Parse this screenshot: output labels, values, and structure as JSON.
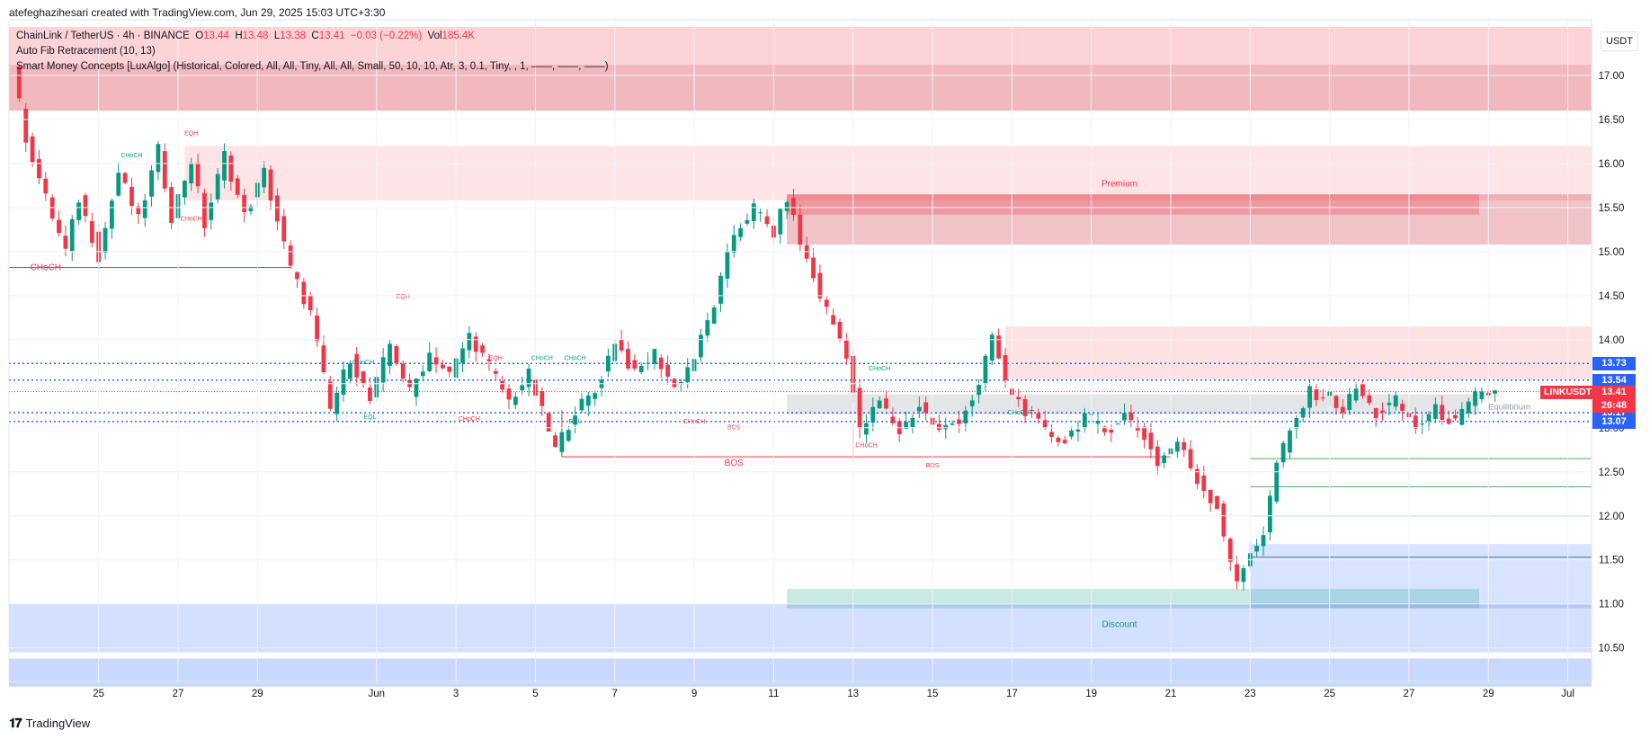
{
  "header": {
    "credit": "atefeghazihesari created with TradingView.com, Jun 29, 2025 15:03 UTC+3:30"
  },
  "legend": {
    "symbol": "ChainLink / TetherUS · 4h · BINANCE",
    "o_label": "O",
    "o": "13.44",
    "h_label": "H",
    "h": "13.48",
    "l_label": "L",
    "l": "13.38",
    "c_label": "C",
    "c": "13.41",
    "change": "−0.03 (−0.22%)",
    "vol_label": "Vol",
    "vol": "185.4K",
    "indicator1": "Auto Fib Retracement (10, 13)",
    "indicator2": "Smart Money Concepts [LuxAlgo] (Historical, Colored, All, All, Tiny, All, All, Small, 50, 10, 10, Atr, 3, 0.1, Tiny, , 1, ——, ——, ——)"
  },
  "currency": "USDT",
  "footer": {
    "brand": "TradingView"
  },
  "price_tags": {
    "symbol": "LINKUSDT",
    "last": "13.41",
    "countdown": "26:48",
    "levels": [
      {
        "label": "13.73",
        "value": 13.73
      },
      {
        "label": "13.54",
        "value": 13.54
      },
      {
        "label": "13.17",
        "value": 13.17
      },
      {
        "label": "13.07",
        "value": 13.07
      }
    ]
  },
  "colors": {
    "up": "#089981",
    "down": "#f23645",
    "blue_tag": "#2962ff"
  },
  "chart_data": {
    "type": "candlestick",
    "y_ticks": [
      "10.50",
      "11.00",
      "11.50",
      "12.00",
      "12.50",
      "13.00",
      "13.50",
      "14.00",
      "14.50",
      "15.00",
      "15.50",
      "16.00",
      "16.50",
      "17.00"
    ],
    "ylim": [
      10.15,
      17.55
    ],
    "x_ticks": [
      {
        "label": "25",
        "bar": 13
      },
      {
        "label": "27",
        "bar": 25
      },
      {
        "label": "29",
        "bar": 37
      },
      {
        "label": "Jun",
        "bar": 55
      },
      {
        "label": "3",
        "bar": 67
      },
      {
        "label": "5",
        "bar": 79
      },
      {
        "label": "7",
        "bar": 91
      },
      {
        "label": "9",
        "bar": 103
      },
      {
        "label": "11",
        "bar": 115
      },
      {
        "label": "13",
        "bar": 127
      },
      {
        "label": "15",
        "bar": 139
      },
      {
        "label": "17",
        "bar": 151
      },
      {
        "label": "19",
        "bar": 163
      },
      {
        "label": "21",
        "bar": 175
      },
      {
        "label": "23",
        "bar": 187
      },
      {
        "label": "25",
        "bar": 199
      },
      {
        "label": "27",
        "bar": 211
      },
      {
        "label": "29",
        "bar": 223
      },
      {
        "label": "Jul",
        "bar": 235
      }
    ],
    "pivots": [
      [
        0,
        17.05
      ],
      [
        2,
        16.3
      ],
      [
        5,
        15.6
      ],
      [
        8,
        15.0
      ],
      [
        10,
        15.6
      ],
      [
        13,
        14.95
      ],
      [
        16,
        15.9
      ],
      [
        19,
        15.35
      ],
      [
        22,
        16.15
      ],
      [
        24,
        15.4
      ],
      [
        27,
        16.05
      ],
      [
        29,
        15.3
      ],
      [
        32,
        16.1
      ],
      [
        35,
        15.4
      ],
      [
        38,
        15.9
      ],
      [
        42,
        14.8
      ],
      [
        45,
        14.3
      ],
      [
        48,
        13.2
      ],
      [
        51,
        13.8
      ],
      [
        54,
        13.3
      ],
      [
        57,
        13.95
      ],
      [
        60,
        13.4
      ],
      [
        63,
        13.85
      ],
      [
        66,
        13.6
      ],
      [
        69,
        14.05
      ],
      [
        72,
        13.7
      ],
      [
        75,
        13.3
      ],
      [
        78,
        13.6
      ],
      [
        82,
        12.75
      ],
      [
        85,
        13.2
      ],
      [
        88,
        13.4
      ],
      [
        91,
        14.0
      ],
      [
        94,
        13.6
      ],
      [
        97,
        13.85
      ],
      [
        100,
        13.45
      ],
      [
        103,
        13.8
      ],
      [
        106,
        14.4
      ],
      [
        109,
        15.2
      ],
      [
        112,
        15.5
      ],
      [
        115,
        15.2
      ],
      [
        117,
        15.62
      ],
      [
        119,
        15.1
      ],
      [
        122,
        14.5
      ],
      [
        126,
        13.85
      ],
      [
        128,
        12.95
      ],
      [
        131,
        13.3
      ],
      [
        134,
        12.95
      ],
      [
        137,
        13.25
      ],
      [
        140,
        12.95
      ],
      [
        143,
        13.1
      ],
      [
        146,
        13.45
      ],
      [
        148,
        14.05
      ],
      [
        150,
        13.5
      ],
      [
        153,
        13.2
      ],
      [
        156,
        12.95
      ],
      [
        159,
        12.85
      ],
      [
        162,
        13.15
      ],
      [
        165,
        12.95
      ],
      [
        168,
        13.15
      ],
      [
        171,
        12.9
      ],
      [
        173,
        12.6
      ],
      [
        176,
        12.85
      ],
      [
        179,
        12.4
      ],
      [
        182,
        12.1
      ],
      [
        185,
        11.2
      ],
      [
        187,
        11.6
      ],
      [
        189,
        11.8
      ],
      [
        191,
        12.6
      ],
      [
        194,
        13.1
      ],
      [
        196,
        13.4
      ],
      [
        199,
        13.35
      ],
      [
        201,
        13.2
      ],
      [
        203,
        13.45
      ],
      [
        206,
        13.15
      ],
      [
        209,
        13.3
      ],
      [
        212,
        13.0
      ],
      [
        215,
        13.2
      ],
      [
        218,
        13.05
      ],
      [
        221,
        13.35
      ],
      [
        224,
        13.41
      ]
    ],
    "zones": [
      {
        "name": "Premium",
        "label": "Premium",
        "from": 0,
        "y1": 17.55,
        "y2": 16.6
      },
      {
        "name": "Discount",
        "label": "Discount",
        "from": 0,
        "y1": 11.0,
        "y2": 10.45
      }
    ],
    "structure_labels": [
      "CHoCH",
      "EQH",
      "CHoCH",
      "CHoCH",
      "CHoCH",
      "EQH",
      "CHoCH",
      "EQL",
      "CHoCH",
      "EQH",
      "CHoCH",
      "EQL",
      "CHoCH",
      "CHoCH",
      "BOS",
      "BOS",
      "CHoCH",
      "BOS",
      "CHoCH"
    ],
    "equilibrium_label": "Equilibrium"
  }
}
